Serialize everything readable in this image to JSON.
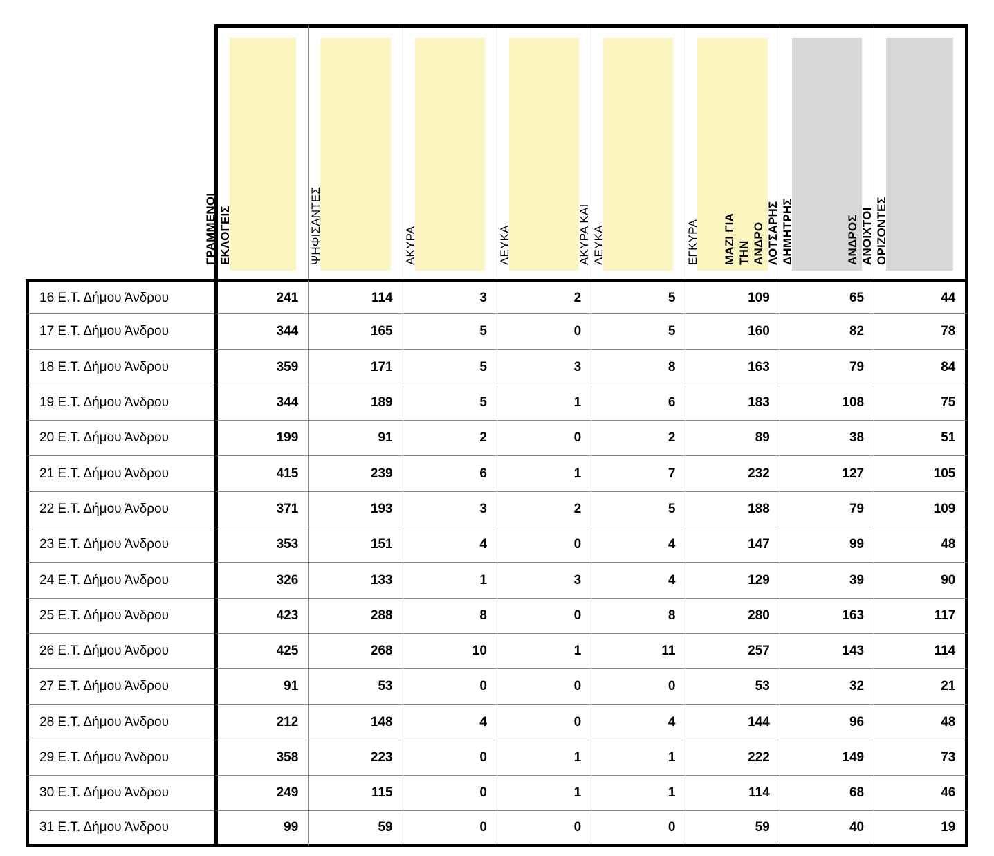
{
  "colors": {
    "header_yellow": "#fcf5c0",
    "header_gray": "#d7d7d7",
    "grid_line": "#878787",
    "frame_black": "#000000"
  },
  "table": {
    "columns": [
      {
        "label": "ΓΡΑΜΜΕΝΟΙ ΕΚΛΟΓΕΙΣ",
        "chip": "yellow",
        "bold": true
      },
      {
        "label": "ΨΗΦΙΣΑΝΤΕΣ",
        "chip": "yellow",
        "bold": false
      },
      {
        "label": "ΑΚΥΡΑ",
        "chip": "yellow",
        "bold": false
      },
      {
        "label": "ΛΕΥΚΑ",
        "chip": "yellow",
        "bold": false
      },
      {
        "label": "ΑΚΥΡΑ ΚΑΙ ΛΕΥΚΑ",
        "chip": "yellow",
        "bold": false
      },
      {
        "label": "ΕΓΚΥΡΑ",
        "chip": "yellow",
        "bold": false
      },
      {
        "label": "ΜΑΖΙ ΓΙΑ ΤΗΝ ΑΝΔΡΟ\nΛΟΤΣΑΡΗΣ ΔΗΜΗΤΡΗΣ",
        "chip": "gray",
        "bold": true
      },
      {
        "label": "ΑΝΔΡΟΣ ΑΝΟΙΧΤΟΙ\nΟΡΙΖΟΝΤΕΣ",
        "chip": "gray",
        "bold": true
      }
    ],
    "rows": [
      {
        "label": "16 Ε.Τ. Δήμου Άνδρου",
        "values": [
          241,
          114,
          3,
          2,
          5,
          109,
          65,
          44
        ]
      },
      {
        "label": "17 Ε.Τ. Δήμου Άνδρου",
        "values": [
          344,
          165,
          5,
          0,
          5,
          160,
          82,
          78
        ]
      },
      {
        "label": "18 Ε.Τ. Δήμου Άνδρου",
        "values": [
          359,
          171,
          5,
          3,
          8,
          163,
          79,
          84
        ]
      },
      {
        "label": "19 Ε.Τ. Δήμου Άνδρου",
        "values": [
          344,
          189,
          5,
          1,
          6,
          183,
          108,
          75
        ]
      },
      {
        "label": "20 Ε.Τ. Δήμου Άνδρου",
        "values": [
          199,
          91,
          2,
          0,
          2,
          89,
          38,
          51
        ]
      },
      {
        "label": "21 Ε.Τ. Δήμου Άνδρου",
        "values": [
          415,
          239,
          6,
          1,
          7,
          232,
          127,
          105
        ]
      },
      {
        "label": "22 Ε.Τ. Δήμου Άνδρου",
        "values": [
          371,
          193,
          3,
          2,
          5,
          188,
          79,
          109
        ]
      },
      {
        "label": "23 Ε.Τ. Δήμου Άνδρου",
        "values": [
          353,
          151,
          4,
          0,
          4,
          147,
          99,
          48
        ]
      },
      {
        "label": "24 Ε.Τ. Δήμου Άνδρου",
        "values": [
          326,
          133,
          1,
          3,
          4,
          129,
          39,
          90
        ]
      },
      {
        "label": "25 Ε.Τ. Δήμου Άνδρου",
        "values": [
          423,
          288,
          8,
          0,
          8,
          280,
          163,
          117
        ]
      },
      {
        "label": "26 Ε.Τ. Δήμου Άνδρου",
        "values": [
          425,
          268,
          10,
          1,
          11,
          257,
          143,
          114
        ]
      },
      {
        "label": "27 Ε.Τ. Δήμου Άνδρου",
        "values": [
          91,
          53,
          0,
          0,
          0,
          53,
          32,
          21
        ]
      },
      {
        "label": "28 Ε.Τ. Δήμου Άνδρου",
        "values": [
          212,
          148,
          4,
          0,
          4,
          144,
          96,
          48
        ]
      },
      {
        "label": "29 Ε.Τ. Δήμου Άνδρου",
        "values": [
          358,
          223,
          0,
          1,
          1,
          222,
          149,
          73
        ]
      },
      {
        "label": "30 Ε.Τ. Δήμου Άνδρου",
        "values": [
          249,
          115,
          0,
          1,
          1,
          114,
          68,
          46
        ]
      },
      {
        "label": "31 Ε.Τ. Δήμου Άνδρου",
        "values": [
          99,
          59,
          0,
          0,
          0,
          59,
          40,
          19
        ]
      }
    ]
  }
}
